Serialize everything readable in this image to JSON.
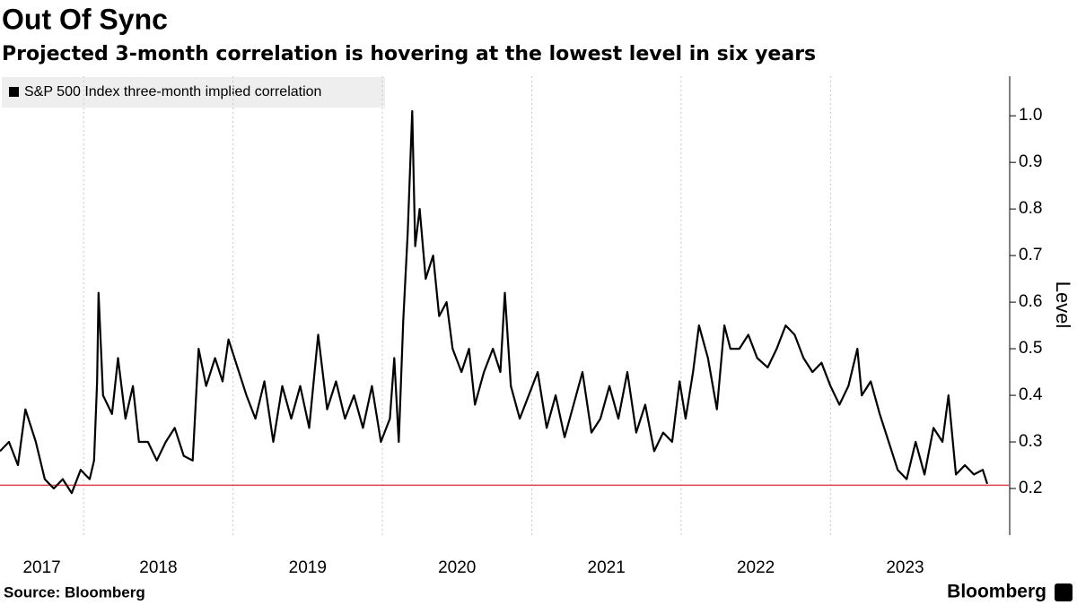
{
  "chart_data": {
    "type": "line",
    "title": "Out Of Sync",
    "subtitle": "Projected 3-month correlation is hovering at the lowest level in six years",
    "y_label": "Level",
    "source": "Source: Bloomberg",
    "brand": "Bloomberg",
    "legend_position": "top-left",
    "grid_x": true,
    "reference_line": 0.207,
    "reference_color": "#e0404f",
    "xlim": [
      2017.44,
      2024.2
    ],
    "xticks": [
      2017,
      2018,
      2019,
      2020,
      2021,
      2022,
      2023
    ],
    "ylim": [
      0.1,
      1.085
    ],
    "yticks": [
      0.2,
      0.3,
      0.4,
      0.5,
      0.6,
      0.7,
      0.8,
      0.9,
      {
        "value": 1,
        "label": "1.0"
      }
    ],
    "x": [
      2017.44,
      2017.5,
      2017.56,
      2017.61,
      2017.68,
      2017.74,
      2017.8,
      2017.86,
      2017.92,
      2017.98,
      2018.04,
      2018.07,
      2018.09,
      2018.1,
      2018.13,
      2018.19,
      2018.23,
      2018.28,
      2018.33,
      2018.37,
      2018.43,
      2018.49,
      2018.55,
      2018.61,
      2018.67,
      2018.73,
      2018.77,
      2018.82,
      2018.88,
      2018.93,
      2018.97,
      2019.03,
      2019.09,
      2019.15,
      2019.21,
      2019.27,
      2019.33,
      2019.39,
      2019.45,
      2019.51,
      2019.57,
      2019.63,
      2019.69,
      2019.75,
      2019.81,
      2019.87,
      2019.93,
      2019.99,
      2020.05,
      2020.08,
      2020.11,
      2020.14,
      2020.17,
      2020.2,
      2020.22,
      2020.25,
      2020.29,
      2020.34,
      2020.38,
      2020.43,
      2020.47,
      2020.53,
      2020.58,
      2020.62,
      2020.68,
      2020.74,
      2020.79,
      2020.82,
      2020.86,
      2020.92,
      2020.98,
      2021.04,
      2021.1,
      2021.16,
      2021.22,
      2021.28,
      2021.34,
      2021.4,
      2021.46,
      2021.52,
      2021.58,
      2021.64,
      2021.7,
      2021.76,
      2021.82,
      2021.88,
      2021.94,
      2021.99,
      2022.03,
      2022.08,
      2022.12,
      2022.18,
      2022.24,
      2022.29,
      2022.33,
      2022.39,
      2022.45,
      2022.51,
      2022.58,
      2022.64,
      2022.7,
      2022.76,
      2022.82,
      2022.88,
      2022.94,
      2023.0,
      2023.06,
      2023.12,
      2023.18,
      2023.21,
      2023.27,
      2023.33,
      2023.39,
      2023.45,
      2023.51,
      2023.57,
      2023.63,
      2023.69,
      2023.75,
      2023.79,
      2023.84,
      2023.9,
      2023.96,
      2024.02,
      2024.05
    ],
    "series": [
      {
        "name": "S&P 500 Index three-month implied correlation",
        "color": "#000000",
        "values": [
          0.28,
          0.3,
          0.25,
          0.37,
          0.3,
          0.22,
          0.2,
          0.22,
          0.19,
          0.24,
          0.22,
          0.26,
          0.43,
          0.62,
          0.4,
          0.36,
          0.48,
          0.35,
          0.42,
          0.3,
          0.3,
          0.26,
          0.3,
          0.33,
          0.27,
          0.26,
          0.5,
          0.42,
          0.48,
          0.43,
          0.52,
          0.46,
          0.4,
          0.35,
          0.43,
          0.3,
          0.42,
          0.35,
          0.42,
          0.33,
          0.53,
          0.37,
          0.43,
          0.35,
          0.4,
          0.33,
          0.42,
          0.3,
          0.35,
          0.48,
          0.3,
          0.56,
          0.75,
          1.01,
          0.72,
          0.8,
          0.65,
          0.7,
          0.57,
          0.6,
          0.5,
          0.45,
          0.5,
          0.38,
          0.45,
          0.5,
          0.45,
          0.62,
          0.42,
          0.35,
          0.4,
          0.45,
          0.33,
          0.4,
          0.31,
          0.38,
          0.45,
          0.32,
          0.35,
          0.42,
          0.35,
          0.45,
          0.32,
          0.38,
          0.28,
          0.32,
          0.3,
          0.43,
          0.35,
          0.45,
          0.55,
          0.48,
          0.37,
          0.55,
          0.5,
          0.5,
          0.53,
          0.48,
          0.46,
          0.5,
          0.55,
          0.53,
          0.48,
          0.45,
          0.47,
          0.42,
          0.38,
          0.42,
          0.5,
          0.4,
          0.43,
          0.36,
          0.3,
          0.24,
          0.22,
          0.3,
          0.23,
          0.33,
          0.3,
          0.4,
          0.23,
          0.25,
          0.23,
          0.24,
          0.21
        ]
      }
    ]
  }
}
